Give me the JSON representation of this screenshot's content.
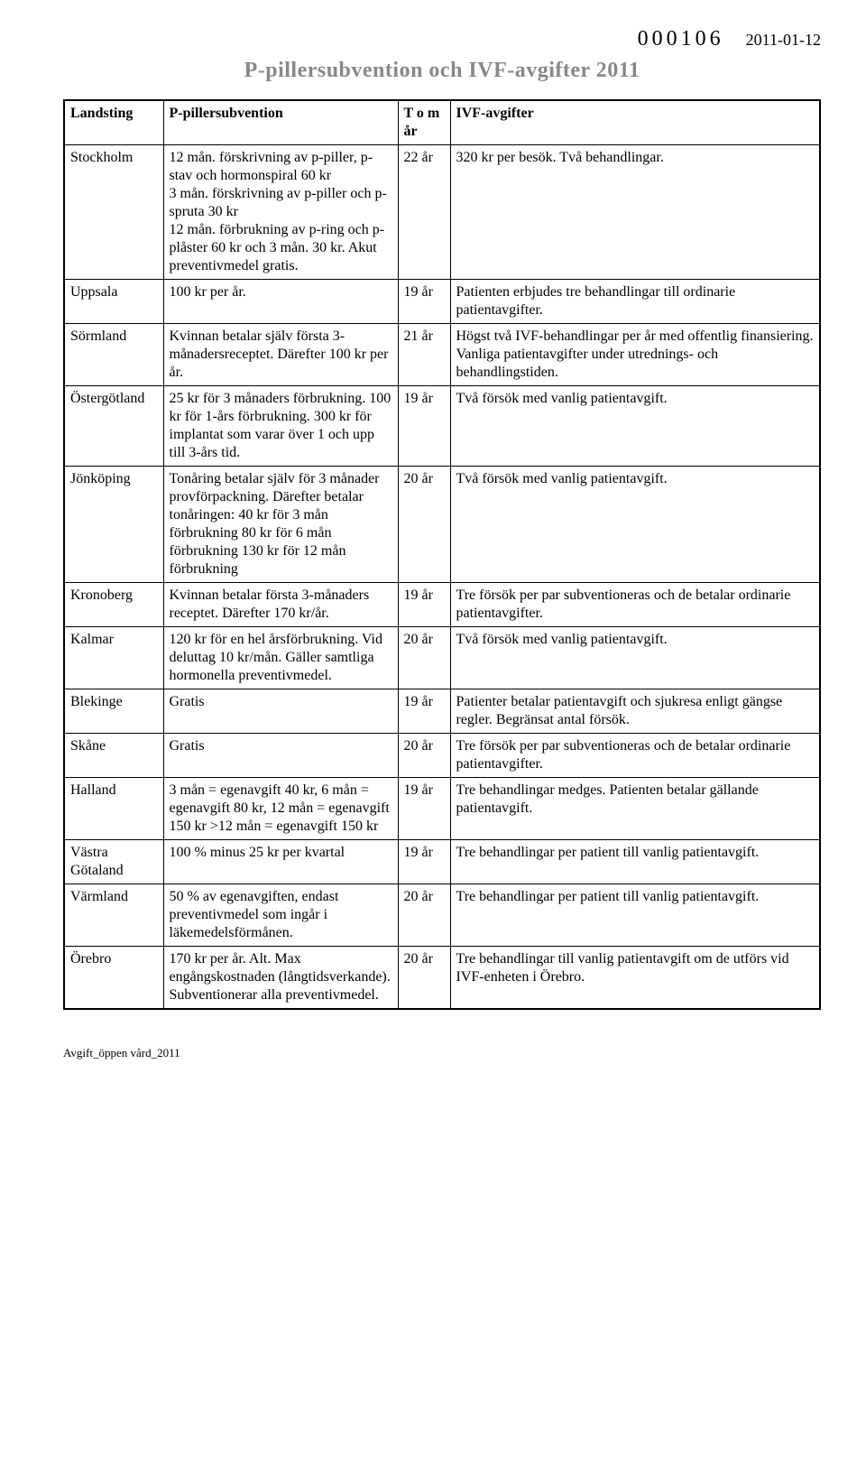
{
  "header": {
    "doc_number": "000106",
    "doc_date": "2011-01-12",
    "title": "P-pillersubvention och IVF-avgifter 2011"
  },
  "table": {
    "columns": {
      "landsting": "Landsting",
      "subvention": "P-pillersubvention",
      "tom": "T o m år",
      "ivf": "IVF-avgifter"
    },
    "rows": [
      {
        "landsting": "Stockholm",
        "subvention_small": "12 mån. förskrivning av p-piller, p-stav och hormonspiral 60 kr\n3 mån. förskrivning av p-piller och p-spruta 30 kr\n12 mån. förbrukning av p-ring och p-plåster 60 kr och 3 mån. 30 kr. Akut preventivmedel gratis.",
        "tom": "22 år",
        "ivf": "320 kr per besök. Två behandlingar."
      },
      {
        "landsting": "Uppsala",
        "subvention": "100 kr per år.",
        "tom": "19 år",
        "ivf": "Patienten erbjudes tre behandlingar till ordinarie patientavgifter."
      },
      {
        "landsting": "Sörmland",
        "subvention": "Kvinnan betalar själv första 3-månadersreceptet. Därefter 100 kr per år.",
        "tom": "21 år",
        "ivf": "Högst två IVF-behandlingar per år med offentlig finansiering. Vanliga patientavgifter under utrednings- och behandlingstiden."
      },
      {
        "landsting": "Östergötland",
        "subvention": "25 kr för 3 månaders förbrukning. 100 kr för 1-års förbrukning. 300 kr för implantat som varar över 1 och upp till 3-års tid.",
        "tom": "19 år",
        "ivf": "Två försök med vanlig patientavgift."
      },
      {
        "landsting": "Jönköping",
        "subvention": "Tonåring betalar själv för 3 månader provförpackning. Därefter betalar tonåringen: 40 kr för 3 mån förbrukning 80 kr för 6 mån förbrukning 130 kr för 12 mån förbrukning",
        "tom": "20 år",
        "ivf": "Två försök med vanlig patientavgift."
      },
      {
        "landsting": "Kronoberg",
        "subvention": "Kvinnan betalar första 3-månaders receptet. Därefter 170 kr/år.",
        "tom": "19 år",
        "ivf": "Tre försök per par subventioneras och de betalar ordinarie patientavgifter."
      },
      {
        "landsting": "Kalmar",
        "subvention": "120 kr för en hel årsförbrukning. Vid deluttag 10 kr/mån. Gäller samtliga hormonella preventivmedel.",
        "tom": "20 år",
        "ivf": "Två försök med vanlig patientavgift."
      },
      {
        "landsting": "Blekinge",
        "subvention": "Gratis",
        "tom": "19 år",
        "ivf": "Patienter betalar patientavgift och sjukresa enligt gängse regler. Begränsat antal försök."
      },
      {
        "landsting": "Skåne",
        "subvention": "Gratis",
        "tom": "20 år",
        "ivf": "Tre försök per par subventioneras och de betalar ordinarie patientavgifter."
      },
      {
        "landsting": "Halland",
        "subvention": "3 mån = egenavgift 40 kr, 6 mån = egenavgift 80 kr, 12 mån = egenavgift 150 kr >12 mån = egenavgift 150 kr",
        "tom": "19 år",
        "ivf": "Tre behandlingar medges. Patienten betalar gällande patientavgift."
      },
      {
        "landsting": "Västra Götaland",
        "subvention": "100 % minus 25 kr per kvartal",
        "tom": "19 år",
        "ivf": "Tre behandlingar per patient till vanlig patientavgift."
      },
      {
        "landsting": "Värmland",
        "subvention": "50 % av egenavgiften, endast preventivmedel som ingår i läkemedelsförmånen.",
        "tom": "20 år",
        "ivf": "Tre behandlingar per patient till vanlig patientavgift."
      },
      {
        "landsting": "Örebro",
        "subvention": "170 kr per år. Alt. Max engångskostnaden (långtidsverkande). Subventionerar alla preventivmedel.",
        "tom": "20 år",
        "ivf": "Tre behandlingar till vanlig patientavgift om de utförs vid IVF-enheten i Örebro."
      }
    ]
  },
  "footer": {
    "text": "Avgift_öppen vård_2011"
  }
}
